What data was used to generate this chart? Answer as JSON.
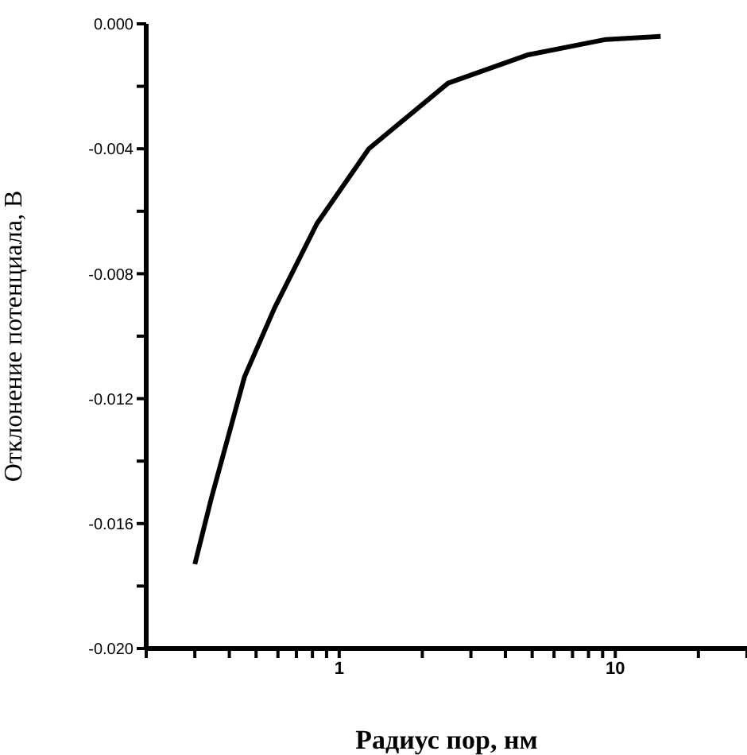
{
  "chart_data": {
    "type": "line",
    "xlabel": "Радиус пор, нм",
    "ylabel": "Отклонение потенциала, В",
    "log": "x",
    "grid": false,
    "legend": false,
    "marker": "none",
    "line_style": "solid",
    "x": [
      0.3,
      0.344,
      0.414,
      0.454,
      0.583,
      0.83,
      1.28,
      2.48,
      4.79,
      9.25,
      14.6
    ],
    "series": [
      {
        "color": "#000000",
        "values": [
          -0.0173,
          -0.0152,
          -0.0126,
          -0.0113,
          -0.0091,
          -0.0064,
          -0.004,
          -0.0019,
          -0.001,
          -0.0005,
          -0.0004
        ]
      }
    ],
    "xlim": [
      0.2,
      30
    ],
    "xticks": [
      {
        "value": 0.2,
        "label": null
      },
      {
        "value": 0.3,
        "label": null
      },
      {
        "value": 0.4,
        "label": null
      },
      {
        "value": 0.5,
        "label": null
      },
      {
        "value": 0.6,
        "label": null
      },
      {
        "value": 0.7,
        "label": null
      },
      {
        "value": 0.8,
        "label": null
      },
      {
        "value": 0.9,
        "label": null
      },
      1,
      {
        "value": 2,
        "label": null
      },
      {
        "value": 3,
        "label": null
      },
      {
        "value": 4,
        "label": null
      },
      {
        "value": 5,
        "label": null
      },
      {
        "value": 6,
        "label": null
      },
      {
        "value": 7,
        "label": null
      },
      {
        "value": 8,
        "label": null
      },
      {
        "value": 9,
        "label": null
      },
      10,
      {
        "value": 20,
        "label": null
      },
      {
        "value": 30,
        "label": null
      }
    ],
    "ylim": [
      -0.02,
      0
    ],
    "yticks": [
      {
        "value": -0.02,
        "label": "-0.020"
      },
      {
        "value": -0.018,
        "label": null
      },
      {
        "value": -0.016,
        "label": "-0.016"
      },
      {
        "value": -0.014,
        "label": null
      },
      {
        "value": -0.012,
        "label": "-0.012"
      },
      {
        "value": -0.01,
        "label": null
      },
      {
        "value": -0.008,
        "label": "-0.008"
      },
      {
        "value": -0.006,
        "label": null
      },
      {
        "value": -0.004,
        "label": "-0.004"
      },
      {
        "value": -0.002,
        "label": null
      },
      {
        "value": 0,
        "label": "0.000"
      }
    ]
  }
}
